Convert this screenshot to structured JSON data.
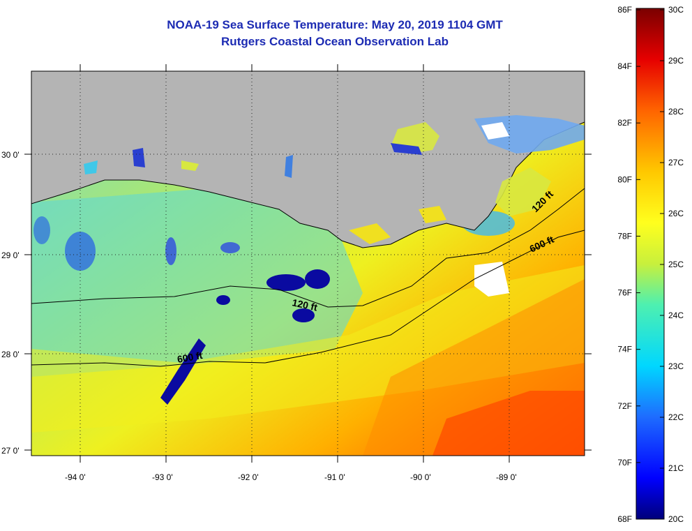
{
  "title": "NOAA-19 Sea Surface Temperature:  May 20, 2019 1104 GMT",
  "subtitle": "Rutgers Coastal Ocean Observation Lab",
  "map": {
    "lon_labels": [
      "-94 0'",
      "-93 0'",
      "-92 0'",
      "-91 0'",
      "-90 0'",
      "-89 0'"
    ],
    "lat_labels": [
      "30 0'",
      "29 0'",
      "28 0'",
      "27 0'"
    ],
    "contour_labels": [
      "120 ft",
      "600 ft",
      "120 ft",
      "600 ft"
    ],
    "land_color": "#b4b4b4",
    "colors": {
      "cold": "#00008b",
      "cool": "#1e90ff",
      "mild": "#40e0d0",
      "warm": "#f0f01e",
      "hot": "#ff3c00"
    }
  },
  "colorbar": {
    "fahrenheit": [
      "86F",
      "84F",
      "82F",
      "80F",
      "78F",
      "76F",
      "74F",
      "72F",
      "70F",
      "68F"
    ],
    "celsius": [
      "30C",
      "29C",
      "28C",
      "27C",
      "26C",
      "25C",
      "24C",
      "23C",
      "22C",
      "21C",
      "20C"
    ]
  }
}
